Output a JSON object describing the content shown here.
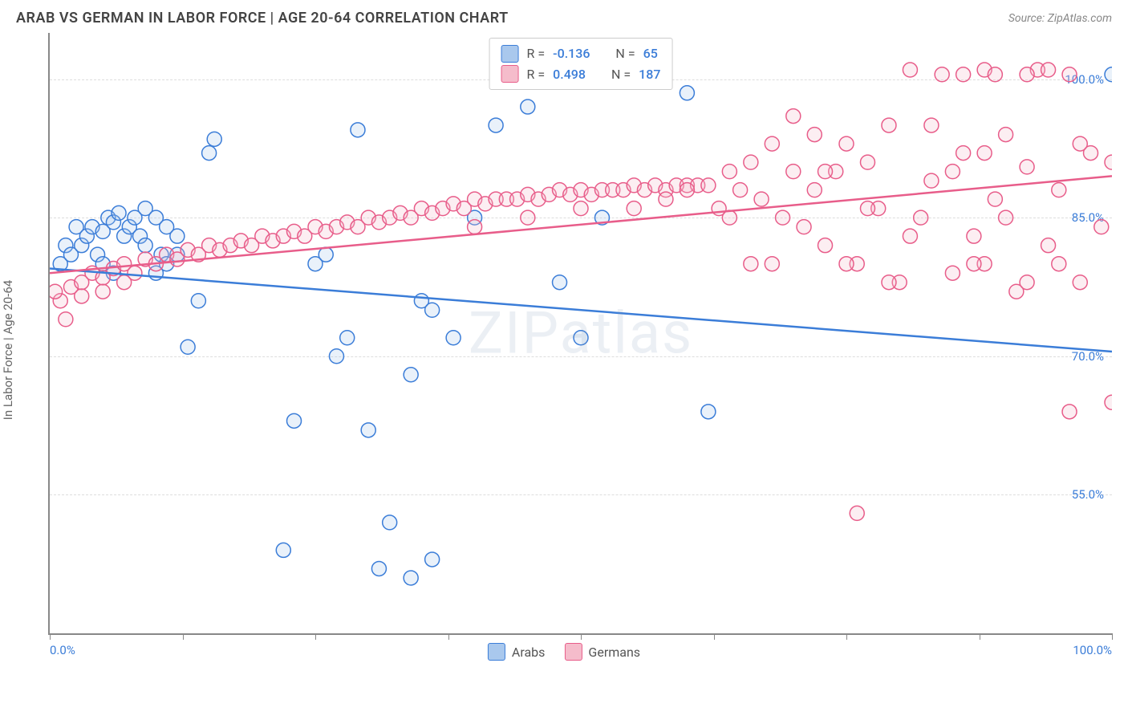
{
  "title": "ARAB VS GERMAN IN LABOR FORCE | AGE 20-64 CORRELATION CHART",
  "source": "Source: ZipAtlas.com",
  "y_axis_label": "In Labor Force | Age 20-64",
  "watermark": "ZIPatlas",
  "chart": {
    "type": "scatter-with-trend",
    "background_color": "#ffffff",
    "grid_color": "#dddddd",
    "axis_color": "#888888",
    "xlim": [
      0,
      100
    ],
    "ylim": [
      40,
      105
    ],
    "x_ticks": [
      0,
      12.5,
      25,
      37.5,
      50,
      62.5,
      75,
      87.5,
      100
    ],
    "x_tick_labels": {
      "0": "0.0%",
      "100": "100.0%"
    },
    "x_tick_label_color": "#3b7dd8",
    "y_gridlines": [
      55,
      70,
      85,
      100
    ],
    "y_tick_labels": {
      "55": "55.0%",
      "70": "70.0%",
      "85": "85.0%",
      "100": "100.0%"
    },
    "y_tick_label_color": "#3b7dd8",
    "marker_radius": 9,
    "marker_stroke_width": 1.5,
    "marker_fill_opacity": 0.25,
    "trend_line_width": 2.5,
    "series": [
      {
        "name": "Arabs",
        "stroke": "#3b7dd8",
        "fill": "#a9c8ed",
        "R": "-0.136",
        "N": "65",
        "trend": {
          "x1": 0,
          "y1": 79.5,
          "x2": 100,
          "y2": 70.5
        },
        "points": [
          [
            1,
            80
          ],
          [
            1.5,
            82
          ],
          [
            2,
            81
          ],
          [
            2.5,
            84
          ],
          [
            3,
            82
          ],
          [
            3.5,
            83
          ],
          [
            4,
            84
          ],
          [
            4.5,
            81
          ],
          [
            5,
            83.5
          ],
          [
            5.5,
            85
          ],
          [
            6,
            84.5
          ],
          [
            6.5,
            85.5
          ],
          [
            7,
            83
          ],
          [
            7.5,
            84
          ],
          [
            8,
            85
          ],
          [
            8.5,
            83
          ],
          [
            9,
            82
          ],
          [
            10,
            79
          ],
          [
            10.5,
            81
          ],
          [
            11,
            80
          ],
          [
            12,
            83
          ],
          [
            13,
            71
          ],
          [
            14,
            76
          ],
          [
            15,
            92
          ],
          [
            15.5,
            93.5
          ],
          [
            22,
            49
          ],
          [
            23,
            63
          ],
          [
            25,
            80
          ],
          [
            26,
            81
          ],
          [
            27,
            70
          ],
          [
            28,
            72
          ],
          [
            29,
            94.5
          ],
          [
            30,
            62
          ],
          [
            32,
            52
          ],
          [
            34,
            68
          ],
          [
            35,
            76
          ],
          [
            36,
            48
          ],
          [
            38,
            72
          ],
          [
            40,
            85
          ],
          [
            42,
            95
          ],
          [
            45,
            97
          ],
          [
            48,
            78
          ],
          [
            50,
            72
          ],
          [
            52,
            85
          ],
          [
            60,
            98.5
          ],
          [
            62,
            64
          ],
          [
            100,
            100.5
          ],
          [
            9,
            86
          ],
          [
            10,
            85
          ],
          [
            11,
            84
          ],
          [
            12,
            81
          ],
          [
            5,
            80
          ],
          [
            6,
            79
          ],
          [
            31,
            47
          ],
          [
            34,
            46
          ],
          [
            36,
            75
          ]
        ]
      },
      {
        "name": "Germans",
        "stroke": "#e85d8a",
        "fill": "#f5bccb",
        "R": "0.498",
        "N": "187",
        "trend": {
          "x1": 0,
          "y1": 79,
          "x2": 100,
          "y2": 89.5
        },
        "points": [
          [
            1,
            76
          ],
          [
            1.5,
            74
          ],
          [
            2,
            77.5
          ],
          [
            3,
            78
          ],
          [
            4,
            79
          ],
          [
            5,
            78.5
          ],
          [
            6,
            79.5
          ],
          [
            7,
            80
          ],
          [
            8,
            79
          ],
          [
            9,
            80.5
          ],
          [
            10,
            80
          ],
          [
            11,
            81
          ],
          [
            12,
            80.5
          ],
          [
            13,
            81.5
          ],
          [
            14,
            81
          ],
          [
            15,
            82
          ],
          [
            16,
            81.5
          ],
          [
            17,
            82
          ],
          [
            18,
            82.5
          ],
          [
            19,
            82
          ],
          [
            20,
            83
          ],
          [
            21,
            82.5
          ],
          [
            22,
            83
          ],
          [
            23,
            83.5
          ],
          [
            24,
            83
          ],
          [
            25,
            84
          ],
          [
            26,
            83.5
          ],
          [
            27,
            84
          ],
          [
            28,
            84.5
          ],
          [
            29,
            84
          ],
          [
            30,
            85
          ],
          [
            31,
            84.5
          ],
          [
            32,
            85
          ],
          [
            33,
            85.5
          ],
          [
            34,
            85
          ],
          [
            35,
            86
          ],
          [
            36,
            85.5
          ],
          [
            37,
            86
          ],
          [
            38,
            86.5
          ],
          [
            39,
            86
          ],
          [
            40,
            87
          ],
          [
            41,
            86.5
          ],
          [
            42,
            87
          ],
          [
            43,
            87
          ],
          [
            44,
            87
          ],
          [
            45,
            87.5
          ],
          [
            46,
            87
          ],
          [
            47,
            87.5
          ],
          [
            48,
            88
          ],
          [
            49,
            87.5
          ],
          [
            50,
            88
          ],
          [
            51,
            87.5
          ],
          [
            52,
            88
          ],
          [
            53,
            88
          ],
          [
            54,
            88
          ],
          [
            55,
            88.5
          ],
          [
            56,
            88
          ],
          [
            57,
            88.5
          ],
          [
            58,
            88
          ],
          [
            59,
            88.5
          ],
          [
            60,
            88.5
          ],
          [
            61,
            88.5
          ],
          [
            62,
            88.5
          ],
          [
            63,
            86
          ],
          [
            64,
            90
          ],
          [
            65,
            88
          ],
          [
            66,
            91
          ],
          [
            67,
            87
          ],
          [
            68,
            93
          ],
          [
            69,
            85
          ],
          [
            70,
            96
          ],
          [
            71,
            84
          ],
          [
            72,
            88
          ],
          [
            73,
            82
          ],
          [
            74,
            90
          ],
          [
            75,
            93
          ],
          [
            76,
            80
          ],
          [
            77,
            91
          ],
          [
            78,
            86
          ],
          [
            79,
            95
          ],
          [
            80,
            78
          ],
          [
            81,
            101
          ],
          [
            82,
            85
          ],
          [
            83,
            89
          ],
          [
            84,
            100.5
          ],
          [
            85,
            79
          ],
          [
            86,
            92
          ],
          [
            87,
            83
          ],
          [
            88,
            101
          ],
          [
            89,
            87
          ],
          [
            90,
            94
          ],
          [
            91,
            77
          ],
          [
            92,
            90.5
          ],
          [
            93,
            101
          ],
          [
            94,
            82
          ],
          [
            95,
            88
          ],
          [
            96,
            100.5
          ],
          [
            97,
            78
          ],
          [
            98,
            92
          ],
          [
            99,
            84
          ],
          [
            100,
            91
          ],
          [
            64,
            85
          ],
          [
            66,
            80
          ],
          [
            70,
            90
          ],
          [
            72,
            94
          ],
          [
            75,
            80
          ],
          [
            79,
            78
          ],
          [
            81,
            83
          ],
          [
            83,
            95
          ],
          [
            85,
            90
          ],
          [
            88,
            80
          ],
          [
            90,
            85
          ],
          [
            92,
            78
          ],
          [
            94,
            101
          ],
          [
            96,
            64
          ],
          [
            76,
            53
          ],
          [
            100,
            65
          ],
          [
            3,
            76.5
          ],
          [
            5,
            77
          ],
          [
            7,
            78
          ],
          [
            0.5,
            77
          ],
          [
            95,
            80
          ],
          [
            97,
            93
          ],
          [
            87,
            80
          ],
          [
            73,
            90
          ],
          [
            77,
            86
          ],
          [
            68,
            80
          ],
          [
            88,
            92
          ],
          [
            60,
            88
          ],
          [
            58,
            87
          ],
          [
            55,
            86
          ],
          [
            50,
            86
          ],
          [
            45,
            85
          ],
          [
            40,
            84
          ],
          [
            92,
            100.5
          ],
          [
            89,
            100.5
          ],
          [
            86,
            100.5
          ]
        ]
      }
    ]
  },
  "legend_top": {
    "R_label": "R =",
    "N_label": "N ="
  },
  "legend_bottom": [
    {
      "label": "Arabs",
      "fill": "#a9c8ed",
      "stroke": "#3b7dd8"
    },
    {
      "label": "Germans",
      "fill": "#f5bccb",
      "stroke": "#e85d8a"
    }
  ]
}
